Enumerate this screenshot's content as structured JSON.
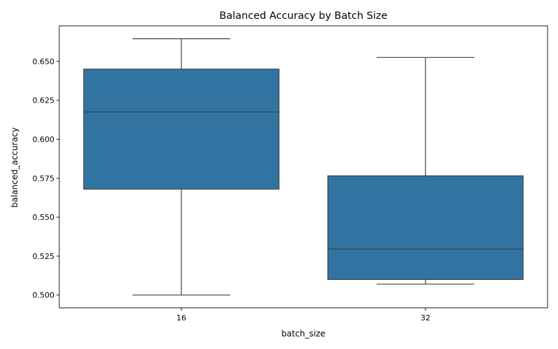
{
  "chart_data": {
    "type": "box",
    "title": "Balanced Accuracy by Batch Size",
    "xlabel": "batch_size",
    "ylabel": "balanced_accuracy",
    "ylim": [
      0.4918,
      0.6728
    ],
    "yticks": [
      0.5,
      0.525,
      0.55,
      0.575,
      0.6,
      0.625,
      0.65
    ],
    "ytick_labels": [
      "0.500",
      "0.525",
      "0.550",
      "0.575",
      "0.600",
      "0.625",
      "0.650"
    ],
    "grid": false,
    "box_color": "#3274a1",
    "line_color": "#3f3f3f",
    "categories": [
      "16",
      "32"
    ],
    "boxes": [
      {
        "category": "16",
        "min": 0.5,
        "q1": 0.568,
        "median": 0.6175,
        "q3": 0.645,
        "max": 0.6645
      },
      {
        "category": "32",
        "min": 0.507,
        "q1": 0.51,
        "median": 0.5295,
        "q3": 0.5765,
        "max": 0.6525
      }
    ]
  }
}
